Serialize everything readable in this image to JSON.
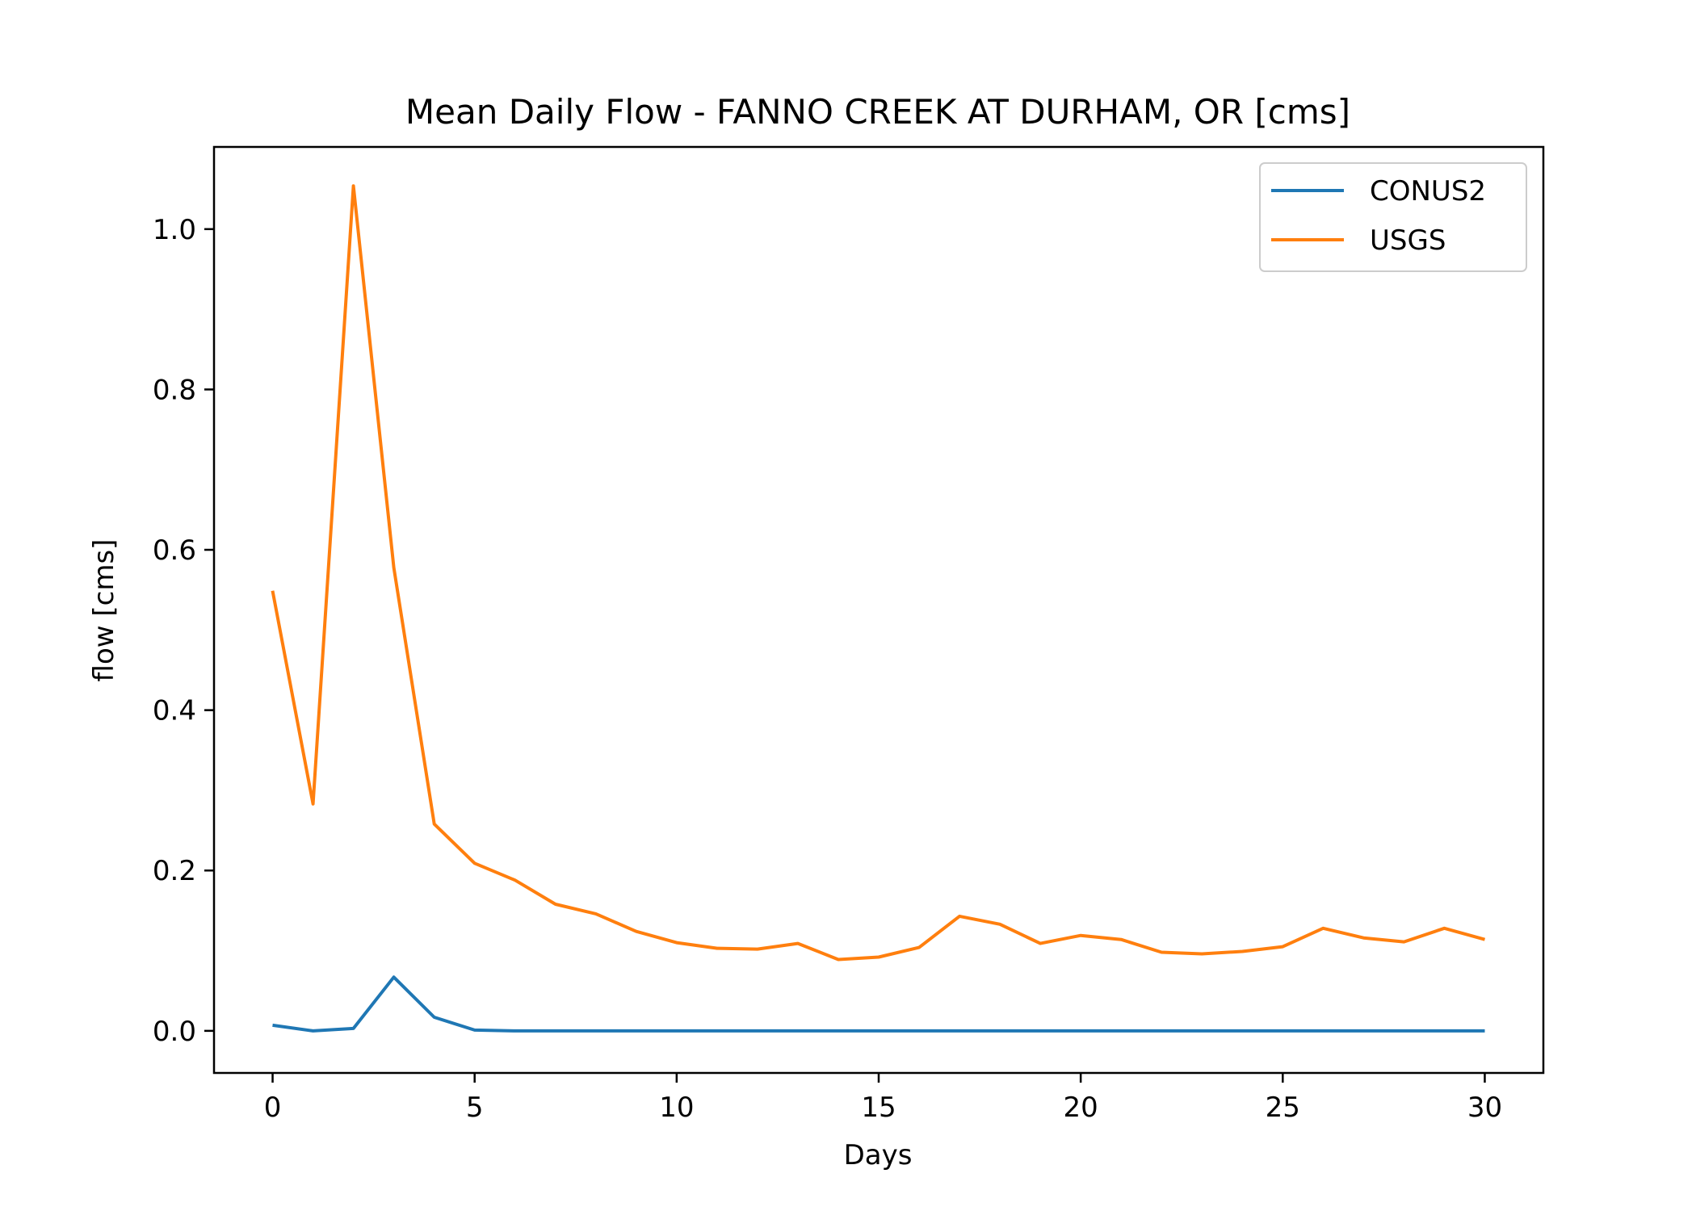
{
  "chart_data": {
    "type": "line",
    "title": "Mean Daily Flow - FANNO CREEK AT DURHAM, OR [cms]",
    "xlabel": "Days",
    "ylabel": "flow [cms]",
    "xlim": [
      -1.45,
      31.45
    ],
    "ylim": [
      -0.0525,
      1.1025
    ],
    "xticks": [
      0,
      5,
      10,
      15,
      20,
      25,
      30
    ],
    "xtick_labels": [
      "0",
      "5",
      "10",
      "15",
      "20",
      "25",
      "30"
    ],
    "yticks": [
      0.0,
      0.2,
      0.4,
      0.6,
      0.8,
      1.0
    ],
    "ytick_labels": [
      "0.0",
      "0.2",
      "0.4",
      "0.6",
      "0.8",
      "1.0"
    ],
    "grid": false,
    "legend_position": "top-right",
    "x": [
      0,
      1,
      2,
      3,
      4,
      5,
      6,
      7,
      8,
      9,
      10,
      11,
      12,
      13,
      14,
      15,
      16,
      17,
      18,
      19,
      20,
      21,
      22,
      23,
      24,
      25,
      26,
      27,
      28,
      29,
      30
    ],
    "series": [
      {
        "name": "CONUS2",
        "color": "#1f77b4",
        "values": [
          0.007,
          0.0,
          0.003,
          0.067,
          0.017,
          0.001,
          0.0,
          0.0,
          0.0,
          0.0,
          0.0,
          0.0,
          0.0,
          0.0,
          0.0,
          0.0,
          0.0,
          0.0,
          0.0,
          0.0,
          0.0,
          0.0,
          0.0,
          0.0,
          0.0,
          0.0,
          0.0,
          0.0,
          0.0,
          0.0,
          0.0
        ]
      },
      {
        "name": "USGS",
        "color": "#ff7f0e",
        "values": [
          0.549,
          0.283,
          1.054,
          0.578,
          0.258,
          0.209,
          0.188,
          0.158,
          0.146,
          0.124,
          0.11,
          0.103,
          0.102,
          0.109,
          0.089,
          0.092,
          0.104,
          0.143,
          0.133,
          0.109,
          0.119,
          0.114,
          0.098,
          0.096,
          0.099,
          0.105,
          0.128,
          0.116,
          0.111,
          0.128,
          0.114
        ]
      }
    ]
  }
}
